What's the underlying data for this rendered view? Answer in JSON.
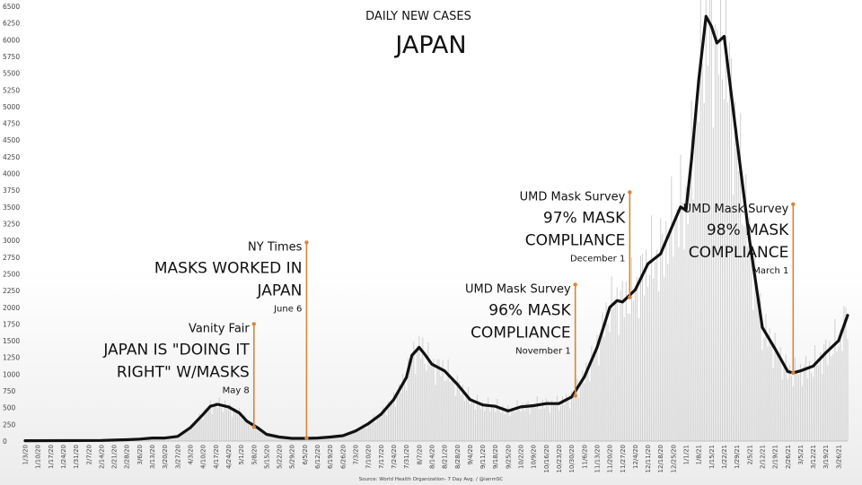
{
  "chart_data": {
    "type": "line",
    "subtitle": "DAILY NEW CASES",
    "title": "JAPAN",
    "source": "Source: World Health Organization- 7 Day Avg. / @ianmSC",
    "ylim": [
      0,
      6500
    ],
    "y_ticks": [
      "0",
      "250",
      "500",
      "750",
      "1000",
      "1250",
      "1500",
      "1750",
      "2000",
      "2250",
      "2500",
      "2750",
      "3000",
      "3250",
      "3500",
      "3750",
      "4000",
      "4250",
      "4500",
      "4750",
      "5000",
      "5250",
      "5500",
      "5750",
      "6000",
      "6250",
      "6500"
    ],
    "x_ticks": [
      "1/3/20",
      "1/10/20",
      "1/17/20",
      "1/24/20",
      "1/31/20",
      "2/7/20",
      "2/14/20",
      "2/21/20",
      "2/28/20",
      "3/6/20",
      "3/13/20",
      "3/20/20",
      "3/27/20",
      "4/3/20",
      "4/10/20",
      "4/17/20",
      "4/24/20",
      "5/1/20",
      "5/8/20",
      "5/15/20",
      "5/22/20",
      "5/29/20",
      "6/5/20",
      "6/12/20",
      "6/19/20",
      "6/26/20",
      "7/3/20",
      "7/10/20",
      "7/17/20",
      "7/24/20",
      "7/31/20",
      "8/7/20",
      "8/14/20",
      "8/21/20",
      "8/28/20",
      "9/4/20",
      "9/11/20",
      "9/18/20",
      "9/25/20",
      "10/2/20",
      "10/9/20",
      "10/16/20",
      "10/23/20",
      "10/30/20",
      "11/6/20",
      "11/13/20",
      "11/20/20",
      "11/27/20",
      "12/4/20",
      "12/11/20",
      "12/18/20",
      "12/25/20",
      "1/1/21",
      "1/8/21",
      "1/15/21",
      "1/22/21",
      "1/29/21",
      "2/5/21",
      "2/12/21",
      "2/19/21",
      "2/26/21",
      "3/5/21",
      "3/12/21",
      "3/19/21",
      "3/26/21"
    ],
    "x_date_range": [
      "2020-01-03",
      "2021-03-31"
    ],
    "series": [
      {
        "color": "#111111",
        "points": [
          [
            "2020-01-03",
            5
          ],
          [
            "2020-02-14",
            10
          ],
          [
            "2020-02-28",
            20
          ],
          [
            "2020-03-06",
            30
          ],
          [
            "2020-03-13",
            45
          ],
          [
            "2020-03-20",
            45
          ],
          [
            "2020-03-27",
            70
          ],
          [
            "2020-04-03",
            200
          ],
          [
            "2020-04-10",
            400
          ],
          [
            "2020-04-14",
            520
          ],
          [
            "2020-04-18",
            550
          ],
          [
            "2020-04-24",
            510
          ],
          [
            "2020-04-30",
            420
          ],
          [
            "2020-05-04",
            300
          ],
          [
            "2020-05-10",
            200
          ],
          [
            "2020-05-15",
            100
          ],
          [
            "2020-05-22",
            60
          ],
          [
            "2020-05-29",
            40
          ],
          [
            "2020-06-05",
            40
          ],
          [
            "2020-06-12",
            45
          ],
          [
            "2020-06-19",
            60
          ],
          [
            "2020-06-26",
            80
          ],
          [
            "2020-07-03",
            150
          ],
          [
            "2020-07-10",
            260
          ],
          [
            "2020-07-17",
            400
          ],
          [
            "2020-07-24",
            620
          ],
          [
            "2020-07-31",
            950
          ],
          [
            "2020-08-03",
            1280
          ],
          [
            "2020-08-07",
            1400
          ],
          [
            "2020-08-10",
            1300
          ],
          [
            "2020-08-14",
            1150
          ],
          [
            "2020-08-21",
            1050
          ],
          [
            "2020-08-28",
            850
          ],
          [
            "2020-09-04",
            620
          ],
          [
            "2020-09-11",
            540
          ],
          [
            "2020-09-18",
            520
          ],
          [
            "2020-09-25",
            450
          ],
          [
            "2020-10-02",
            510
          ],
          [
            "2020-10-09",
            530
          ],
          [
            "2020-10-16",
            560
          ],
          [
            "2020-10-23",
            560
          ],
          [
            "2020-10-30",
            660
          ],
          [
            "2020-11-06",
            960
          ],
          [
            "2020-11-13",
            1400
          ],
          [
            "2020-11-20",
            2000
          ],
          [
            "2020-11-24",
            2100
          ],
          [
            "2020-11-27",
            2080
          ],
          [
            "2020-12-04",
            2260
          ],
          [
            "2020-12-11",
            2650
          ],
          [
            "2020-12-18",
            2800
          ],
          [
            "2020-12-25",
            3250
          ],
          [
            "2020-12-29",
            3500
          ],
          [
            "2021-01-01",
            3450
          ],
          [
            "2021-01-04",
            4200
          ],
          [
            "2021-01-08",
            5400
          ],
          [
            "2021-01-12",
            6350
          ],
          [
            "2021-01-15",
            6200
          ],
          [
            "2021-01-18",
            5950
          ],
          [
            "2021-01-22",
            6050
          ],
          [
            "2021-01-29",
            4500
          ],
          [
            "2021-02-05",
            3000
          ],
          [
            "2021-02-12",
            1700
          ],
          [
            "2021-02-19",
            1380
          ],
          [
            "2021-02-26",
            1040
          ],
          [
            "2021-03-01",
            1020
          ],
          [
            "2021-03-05",
            1050
          ],
          [
            "2021-03-12",
            1120
          ],
          [
            "2021-03-19",
            1320
          ],
          [
            "2021-03-26",
            1500
          ],
          [
            "2021-03-31",
            1880
          ]
        ]
      }
    ],
    "annotations": [
      {
        "id": "vanity-fair",
        "date": "2020-05-08",
        "y_top": 1750,
        "y_bottom": 210,
        "source": "Vanity Fair",
        "headline": [
          "JAPAN IS \"DOING IT",
          "RIGHT\" W/MASKS"
        ],
        "note": "May 8"
      },
      {
        "id": "ny-times",
        "date": "2020-06-06",
        "y_top": 2970,
        "y_bottom": 45,
        "source": "NY Times",
        "headline": [
          "MASKS WORKED IN",
          "JAPAN"
        ],
        "note": "June 6"
      },
      {
        "id": "umd-nov",
        "date": "2020-11-01",
        "y_top": 2340,
        "y_bottom": 680,
        "source": "UMD Mask Survey",
        "headline": [
          "96% MASK",
          "COMPLIANCE"
        ],
        "note": "November 1"
      },
      {
        "id": "umd-dec",
        "date": "2020-12-01",
        "y_top": 3720,
        "y_bottom": 2150,
        "source": "UMD Mask Survey",
        "headline": [
          "97% MASK",
          "COMPLIANCE"
        ],
        "note": "December 1"
      },
      {
        "id": "umd-mar",
        "date": "2021-03-01",
        "y_top": 3540,
        "y_bottom": 1020,
        "source": "UMD Mask Survey",
        "headline": [
          "98% MASK",
          "COMPLIANCE"
        ],
        "note": "March 1"
      }
    ],
    "colors": {
      "line": "#111111",
      "annotation": "#d9853b",
      "bars": "#cfcfcf"
    }
  }
}
